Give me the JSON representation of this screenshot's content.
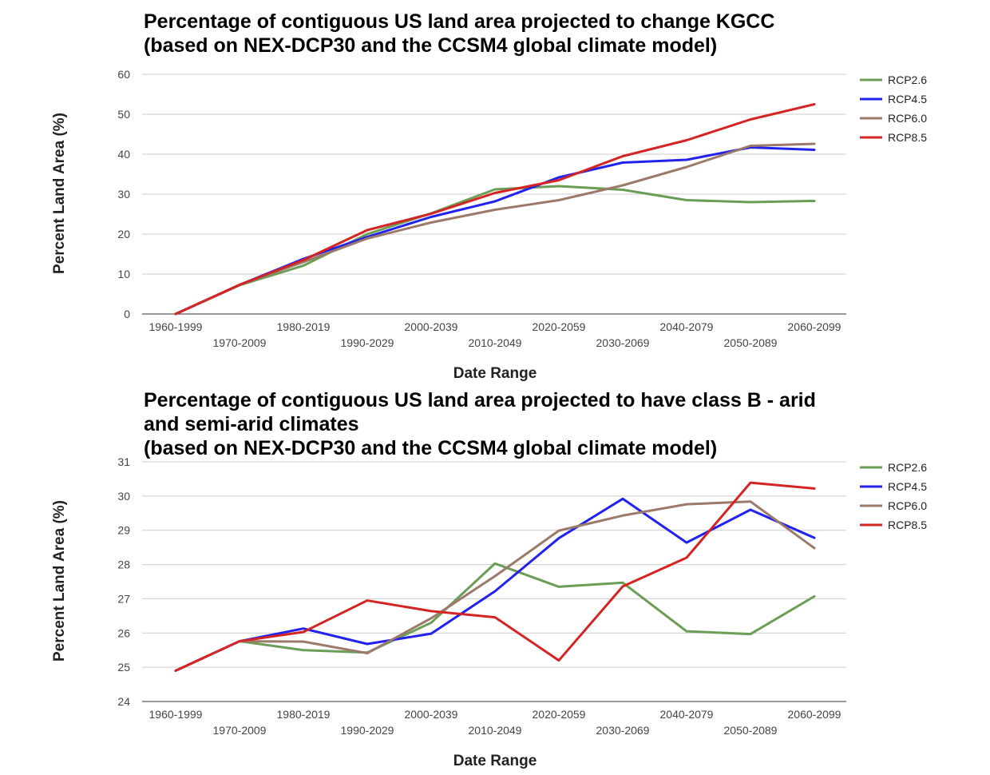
{
  "chart_data": [
    {
      "type": "line",
      "title_lines": [
        "Percentage of contiguous US land area projected to change KGCC",
        "(based on NEX-DCP30 and the CCSM4 global climate model)"
      ],
      "xlabel": "Date Range",
      "ylabel": "Percent Land Area (%)",
      "ylim": [
        0,
        60
      ],
      "yticks": [
        0,
        10,
        20,
        30,
        40,
        50,
        60
      ],
      "grid": true,
      "legend_position": "right",
      "categories": [
        "1960-1999",
        "1970-2009",
        "1980-2019",
        "1990-2029",
        "2000-2039",
        "2010-2049",
        "2020-2059",
        "2030-2069",
        "2040-2079",
        "2050-2089",
        "2060-2099"
      ],
      "series": [
        {
          "name": "RCP2.6",
          "color": "#6a9e55",
          "values": [
            0,
            7.2,
            12.1,
            20.0,
            25.2,
            31.2,
            32.0,
            31.1,
            28.5,
            28.0,
            28.3
          ]
        },
        {
          "name": "RCP4.5",
          "color": "#2222ee",
          "values": [
            0,
            7.3,
            13.8,
            19.3,
            24.3,
            28.2,
            34.2,
            37.9,
            38.6,
            41.7,
            41.1
          ]
        },
        {
          "name": "RCP6.0",
          "color": "#9b7a6a",
          "values": [
            0,
            7.3,
            13.0,
            18.9,
            22.9,
            26.1,
            28.5,
            32.2,
            36.8,
            42.1,
            42.6
          ]
        },
        {
          "name": "RCP8.5",
          "color": "#d42424",
          "values": [
            0,
            7.3,
            13.5,
            21.0,
            25.1,
            30.3,
            33.5,
            39.5,
            43.5,
            48.7,
            52.5
          ]
        }
      ]
    },
    {
      "type": "line",
      "title_lines": [
        "Percentage of contiguous US land area projected to have class B - arid",
        "and semi-arid climates",
        "(based on NEX-DCP30 and the CCSM4 global climate model)"
      ],
      "xlabel": "Date Range",
      "ylabel": "Percent Land Area (%)",
      "ylim": [
        24,
        31
      ],
      "yticks": [
        24,
        25,
        26,
        27,
        28,
        29,
        30,
        31
      ],
      "grid": true,
      "legend_position": "right",
      "categories": [
        "1960-1999",
        "1970-2009",
        "1980-2019",
        "1990-2029",
        "2000-2039",
        "2010-2049",
        "2020-2059",
        "2030-2069",
        "2040-2079",
        "2050-2089",
        "2060-2099"
      ],
      "series": [
        {
          "name": "RCP2.6",
          "color": "#6a9e55",
          "values": [
            24.9,
            25.76,
            25.5,
            25.43,
            26.3,
            28.03,
            27.35,
            27.47,
            26.05,
            25.97,
            27.07
          ]
        },
        {
          "name": "RCP4.5",
          "color": "#2222ee",
          "values": [
            24.9,
            25.76,
            26.13,
            25.68,
            25.98,
            27.22,
            28.77,
            29.92,
            28.64,
            29.6,
            28.78
          ]
        },
        {
          "name": "RCP6.0",
          "color": "#9b7a6a",
          "values": [
            24.9,
            25.76,
            25.75,
            25.41,
            26.43,
            27.66,
            28.99,
            29.43,
            29.76,
            29.84,
            28.48
          ]
        },
        {
          "name": "RCP8.5",
          "color": "#d42424",
          "values": [
            24.9,
            25.76,
            26.03,
            26.95,
            26.64,
            26.46,
            25.2,
            27.36,
            28.2,
            30.39,
            30.22
          ]
        }
      ]
    }
  ]
}
